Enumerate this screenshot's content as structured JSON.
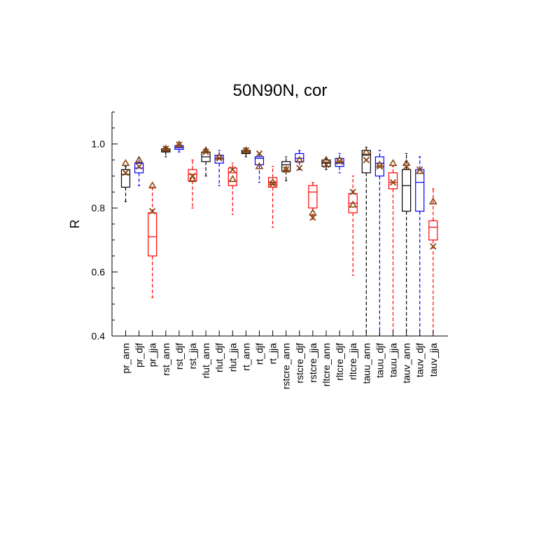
{
  "chart_data": {
    "type": "boxplot",
    "title": "50N90N, cor",
    "xlabel": "",
    "ylabel": "R",
    "ylim": [
      0.4,
      1.1
    ],
    "yticks": [
      0.4,
      0.6,
      0.8,
      1.0
    ],
    "yticklabels": [
      "0.4",
      "0.6",
      "0.8",
      "1.0"
    ],
    "colors": {
      "ann": "#000000",
      "djf": "#0000ff",
      "jja": "#ff0000",
      "marker": "#8b4513"
    },
    "categories": [
      "pr_ann",
      "pr_djf",
      "pr_jja",
      "rst_ann",
      "rst_djf",
      "rst_jja",
      "rlut_ann",
      "rlut_djf",
      "rlut_jja",
      "rt_ann",
      "rt_djf",
      "rt_jja",
      "rstcre_ann",
      "rstcre_djf",
      "rstcre_jja",
      "rltcre_ann",
      "rltcre_djf",
      "rltcre_jja",
      "tauu_ann",
      "tauu_djf",
      "tauu_jja",
      "tauv_ann",
      "tauv_djf",
      "tauv_jja"
    ],
    "boxes": [
      {
        "name": "pr_ann",
        "season": "ann",
        "whisker_low": 0.82,
        "q1": 0.865,
        "median": 0.905,
        "q3": 0.92,
        "whisker_high": 0.93,
        "x_marker": 0.91,
        "tri_marker": 0.94
      },
      {
        "name": "pr_djf",
        "season": "djf",
        "whisker_low": 0.87,
        "q1": 0.91,
        "median": 0.925,
        "q3": 0.94,
        "whisker_high": 0.955,
        "x_marker": 0.93,
        "tri_marker": 0.95
      },
      {
        "name": "pr_jja",
        "season": "jja",
        "whisker_low": 0.52,
        "q1": 0.65,
        "median": 0.71,
        "q3": 0.785,
        "whisker_high": 0.865,
        "x_marker": 0.79,
        "tri_marker": 0.87
      },
      {
        "name": "rst_ann",
        "season": "ann",
        "whisker_low": 0.96,
        "q1": 0.975,
        "median": 0.98,
        "q3": 0.985,
        "whisker_high": 0.99,
        "x_marker": 0.985,
        "tri_marker": 0.985
      },
      {
        "name": "rst_djf",
        "season": "djf",
        "whisker_low": 0.975,
        "q1": 0.983,
        "median": 0.988,
        "q3": 0.995,
        "whisker_high": 1.0,
        "x_marker": 0.998,
        "tri_marker": 0.998
      },
      {
        "name": "rst_jja",
        "season": "jja",
        "whisker_low": 0.8,
        "q1": 0.885,
        "median": 0.905,
        "q3": 0.92,
        "whisker_high": 0.95,
        "x_marker": 0.9,
        "tri_marker": 0.89
      },
      {
        "name": "rlut_ann",
        "season": "ann",
        "whisker_low": 0.9,
        "q1": 0.945,
        "median": 0.96,
        "q3": 0.975,
        "whisker_high": 0.985,
        "x_marker": 0.975,
        "tri_marker": 0.98
      },
      {
        "name": "rlut_djf",
        "season": "djf",
        "whisker_low": 0.87,
        "q1": 0.94,
        "median": 0.955,
        "q3": 0.965,
        "whisker_high": 0.98,
        "x_marker": 0.955,
        "tri_marker": 0.96
      },
      {
        "name": "rlut_jja",
        "season": "jja",
        "whisker_low": 0.78,
        "q1": 0.87,
        "median": 0.91,
        "q3": 0.925,
        "whisker_high": 0.94,
        "x_marker": 0.92,
        "tri_marker": 0.89
      },
      {
        "name": "rt_ann",
        "season": "ann",
        "whisker_low": 0.96,
        "q1": 0.97,
        "median": 0.975,
        "q3": 0.98,
        "whisker_high": 0.985,
        "x_marker": 0.98,
        "tri_marker": 0.98
      },
      {
        "name": "rt_djf",
        "season": "djf",
        "whisker_low": 0.88,
        "q1": 0.935,
        "median": 0.955,
        "q3": 0.96,
        "whisker_high": 0.97,
        "x_marker": 0.97,
        "tri_marker": 0.93
      },
      {
        "name": "rt_jja",
        "season": "jja",
        "whisker_low": 0.74,
        "q1": 0.865,
        "median": 0.88,
        "q3": 0.895,
        "whisker_high": 0.93,
        "x_marker": 0.875,
        "tri_marker": 0.88
      },
      {
        "name": "rstcre_ann",
        "season": "ann",
        "whisker_low": 0.885,
        "q1": 0.915,
        "median": 0.935,
        "q3": 0.945,
        "whisker_high": 0.96,
        "x_marker": 0.92,
        "tri_marker": 0.92
      },
      {
        "name": "rstcre_djf",
        "season": "djf",
        "whisker_low": 0.92,
        "q1": 0.945,
        "median": 0.955,
        "q3": 0.97,
        "whisker_high": 0.98,
        "x_marker": 0.925,
        "tri_marker": 0.95
      },
      {
        "name": "rstcre_jja",
        "season": "jja",
        "whisker_low": 0.765,
        "q1": 0.8,
        "median": 0.85,
        "q3": 0.87,
        "whisker_high": 0.88,
        "x_marker": 0.77,
        "tri_marker": 0.785
      },
      {
        "name": "rltcre_ann",
        "season": "ann",
        "whisker_low": 0.92,
        "q1": 0.93,
        "median": 0.94,
        "q3": 0.95,
        "whisker_high": 0.955,
        "x_marker": 0.935,
        "tri_marker": 0.95
      },
      {
        "name": "rltcre_djf",
        "season": "djf",
        "whisker_low": 0.91,
        "q1": 0.93,
        "median": 0.94,
        "q3": 0.955,
        "whisker_high": 0.97,
        "x_marker": 0.945,
        "tri_marker": 0.95
      },
      {
        "name": "rltcre_jja",
        "season": "jja",
        "whisker_low": 0.59,
        "q1": 0.785,
        "median": 0.815,
        "q3": 0.845,
        "whisker_high": 0.9,
        "x_marker": 0.85,
        "tri_marker": 0.81
      },
      {
        "name": "tauu_ann",
        "season": "ann",
        "whisker_low": 0.4,
        "q1": 0.91,
        "median": 0.965,
        "q3": 0.98,
        "whisker_high": 0.99,
        "x_marker": 0.95,
        "tri_marker": 0.975
      },
      {
        "name": "tauu_djf",
        "season": "djf",
        "whisker_low": 0.4,
        "q1": 0.9,
        "median": 0.94,
        "q3": 0.96,
        "whisker_high": 0.98,
        "x_marker": 0.93,
        "tri_marker": 0.935
      },
      {
        "name": "tauu_jja",
        "season": "jja",
        "whisker_low": 0.4,
        "q1": 0.86,
        "median": 0.88,
        "q3": 0.91,
        "whisker_high": 0.93,
        "x_marker": 0.88,
        "tri_marker": 0.94
      },
      {
        "name": "tauv_ann",
        "season": "ann",
        "whisker_low": 0.4,
        "q1": 0.79,
        "median": 0.87,
        "q3": 0.92,
        "whisker_high": 0.97,
        "x_marker": 0.93,
        "tri_marker": 0.94
      },
      {
        "name": "tauv_djf",
        "season": "djf",
        "whisker_low": 0.4,
        "q1": 0.79,
        "median": 0.88,
        "q3": 0.92,
        "whisker_high": 0.96,
        "x_marker": 0.92,
        "tri_marker": 0.915
      },
      {
        "name": "tauv_jja",
        "season": "jja",
        "whisker_low": 0.4,
        "q1": 0.7,
        "median": 0.74,
        "q3": 0.76,
        "whisker_high": 0.86,
        "x_marker": 0.68,
        "tri_marker": 0.82
      }
    ]
  }
}
